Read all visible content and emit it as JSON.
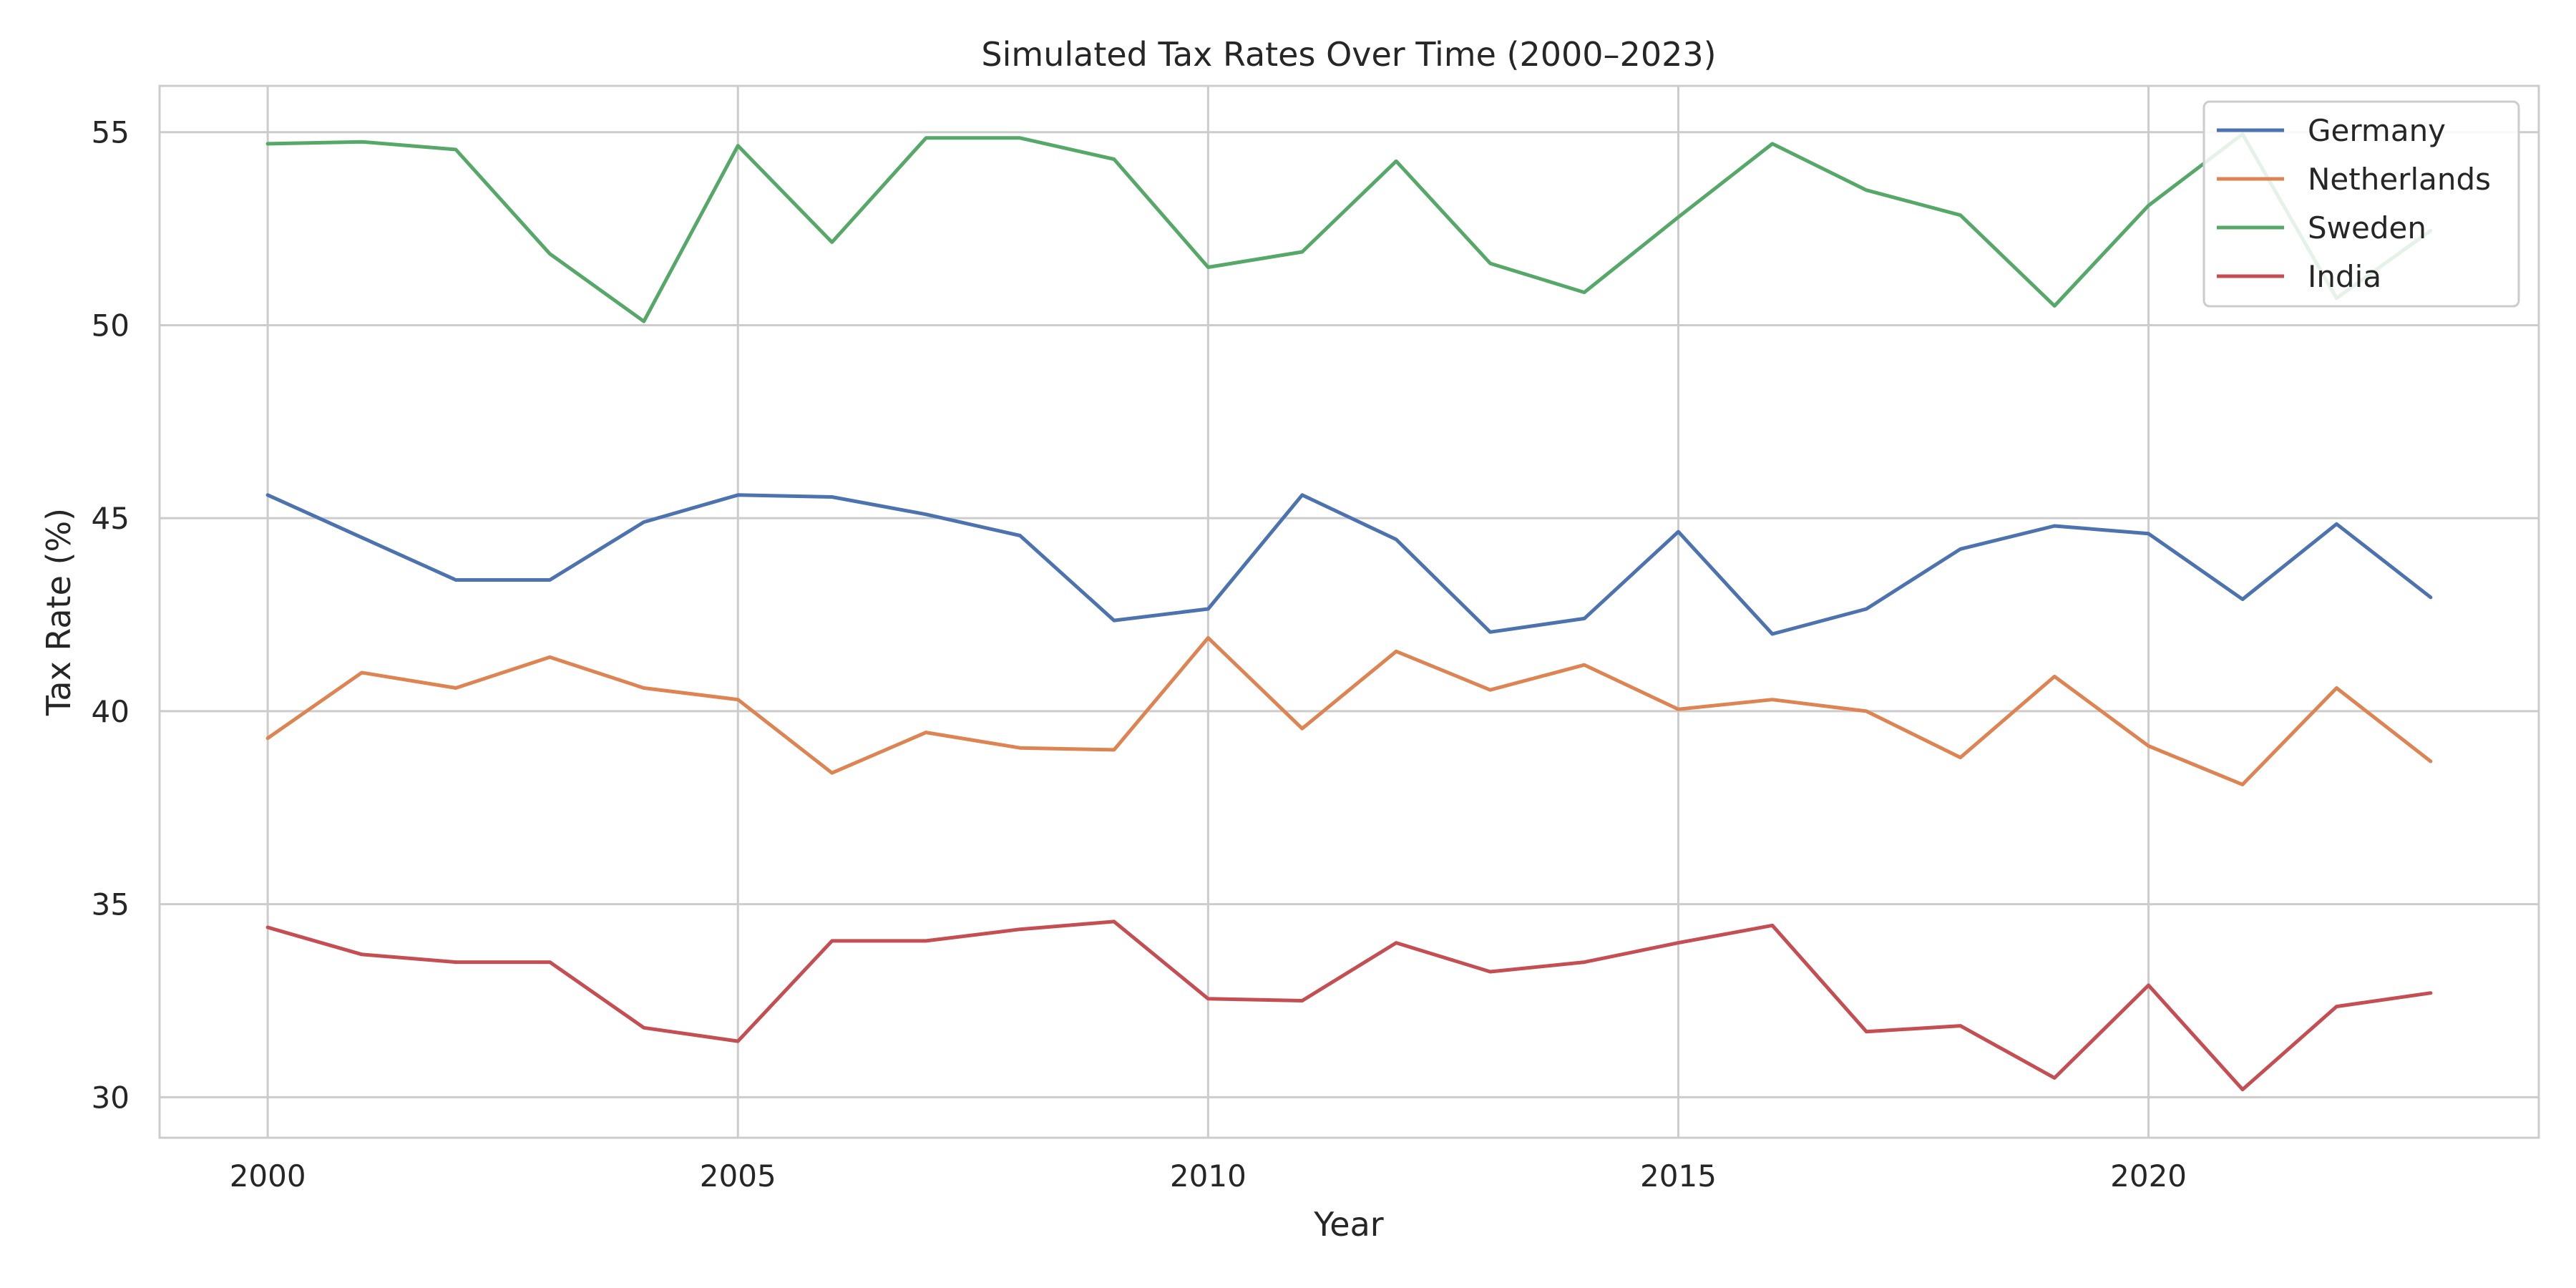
{
  "chart_data": {
    "type": "line",
    "title": "Simulated Tax Rates Over Time (2000–2023)",
    "xlabel": "Year",
    "ylabel": "Tax Rate (%)",
    "x": [
      2000,
      2001,
      2002,
      2003,
      2004,
      2005,
      2006,
      2007,
      2008,
      2009,
      2010,
      2011,
      2012,
      2013,
      2014,
      2015,
      2016,
      2017,
      2018,
      2019,
      2020,
      2021,
      2022,
      2023
    ],
    "xlim": [
      1998.85,
      2024.15
    ],
    "ylim": [
      28.95,
      56.2
    ],
    "xticks": [
      2000,
      2005,
      2010,
      2015,
      2020
    ],
    "yticks": [
      30,
      35,
      40,
      45,
      50,
      55
    ],
    "grid": true,
    "legend": "top-right",
    "series": [
      {
        "name": "Germany",
        "color": "#4c72b0",
        "values": [
          45.6,
          44.5,
          43.4,
          43.4,
          44.9,
          45.6,
          45.55,
          45.1,
          44.55,
          42.35,
          42.65,
          45.6,
          44.45,
          42.05,
          42.4,
          44.65,
          42.0,
          42.65,
          44.2,
          44.8,
          44.6,
          42.9,
          44.85,
          42.95
        ]
      },
      {
        "name": "Netherlands",
        "color": "#dd8452",
        "values": [
          39.3,
          41.0,
          40.6,
          41.4,
          40.6,
          40.3,
          38.4,
          39.45,
          39.05,
          39.0,
          41.9,
          39.55,
          41.55,
          40.55,
          41.2,
          40.05,
          40.3,
          40.0,
          38.8,
          40.9,
          39.1,
          38.1,
          40.6,
          38.7
        ]
      },
      {
        "name": "Sweden",
        "color": "#55a868",
        "values": [
          54.7,
          54.75,
          54.55,
          51.85,
          50.1,
          54.65,
          52.15,
          54.85,
          54.85,
          54.3,
          51.5,
          51.9,
          54.25,
          51.6,
          50.85,
          52.8,
          54.7,
          53.5,
          52.85,
          50.5,
          53.1,
          54.95,
          50.7,
          52.45
        ]
      },
      {
        "name": "India",
        "color": "#c44e52",
        "values": [
          34.4,
          33.7,
          33.5,
          33.5,
          31.8,
          31.45,
          34.05,
          34.05,
          34.35,
          34.55,
          32.55,
          32.5,
          34.0,
          33.25,
          33.5,
          34.0,
          34.45,
          31.7,
          31.85,
          30.5,
          32.9,
          30.2,
          32.35,
          32.7
        ]
      }
    ]
  }
}
